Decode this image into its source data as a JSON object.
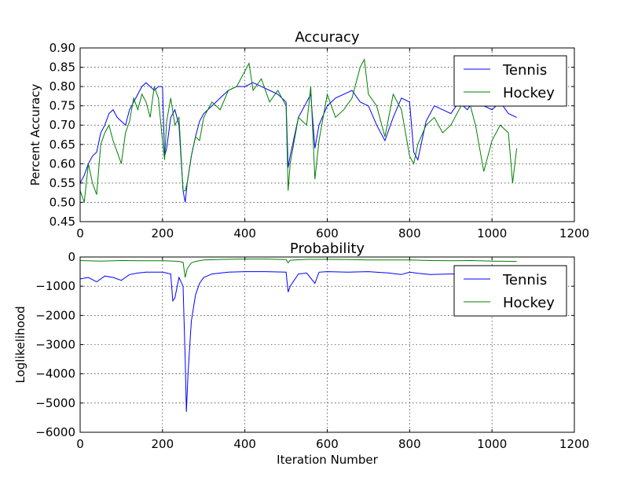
{
  "chart_data": [
    {
      "type": "line",
      "title": "Accuracy",
      "xlabel": "",
      "ylabel": "Percent Accuracy",
      "xlim": [
        0,
        1200
      ],
      "ylim": [
        0.45,
        0.9
      ],
      "xticks": [
        0,
        200,
        400,
        600,
        800,
        1000,
        1200
      ],
      "yticks": [
        0.45,
        0.5,
        0.55,
        0.6,
        0.65,
        0.7,
        0.75,
        0.8,
        0.85,
        0.9
      ],
      "xtick_labels": [
        "0",
        "200",
        "400",
        "600",
        "800",
        "1000",
        "1200"
      ],
      "ytick_labels": [
        "0.45",
        "0.50",
        "0.55",
        "0.60",
        "0.65",
        "0.70",
        "0.75",
        "0.80",
        "0.85",
        "0.90"
      ],
      "grid": true,
      "legend_position": "top-right",
      "series": [
        {
          "name": "Tennis",
          "color": "#0000ff",
          "x": [
            0,
            10,
            20,
            30,
            40,
            50,
            60,
            70,
            80,
            90,
            100,
            110,
            120,
            130,
            140,
            150,
            160,
            170,
            180,
            190,
            200,
            205,
            210,
            220,
            230,
            240,
            250,
            255,
            260,
            270,
            280,
            290,
            300,
            320,
            340,
            360,
            380,
            400,
            420,
            440,
            460,
            480,
            500,
            505,
            510,
            530,
            550,
            560,
            570,
            580,
            600,
            620,
            640,
            660,
            680,
            700,
            720,
            740,
            760,
            780,
            800,
            810,
            820,
            840,
            860,
            880,
            900,
            920,
            940,
            960,
            980,
            1000,
            1020,
            1040,
            1060
          ],
          "y": [
            0.55,
            0.57,
            0.6,
            0.62,
            0.63,
            0.68,
            0.7,
            0.73,
            0.74,
            0.72,
            0.71,
            0.7,
            0.74,
            0.76,
            0.78,
            0.8,
            0.81,
            0.8,
            0.79,
            0.8,
            0.8,
            0.62,
            0.64,
            0.72,
            0.74,
            0.7,
            0.53,
            0.5,
            0.55,
            0.62,
            0.67,
            0.71,
            0.73,
            0.75,
            0.77,
            0.79,
            0.8,
            0.8,
            0.81,
            0.8,
            0.79,
            0.78,
            0.76,
            0.59,
            0.62,
            0.72,
            0.76,
            0.78,
            0.64,
            0.7,
            0.75,
            0.77,
            0.78,
            0.79,
            0.76,
            0.75,
            0.7,
            0.66,
            0.72,
            0.77,
            0.76,
            0.63,
            0.61,
            0.71,
            0.75,
            0.74,
            0.73,
            0.76,
            0.74,
            0.77,
            0.75,
            0.74,
            0.76,
            0.73,
            0.72
          ]
        },
        {
          "name": "Hockey",
          "color": "#008000",
          "x": [
            0,
            10,
            20,
            30,
            40,
            50,
            60,
            70,
            80,
            90,
            100,
            110,
            120,
            130,
            140,
            150,
            160,
            170,
            180,
            190,
            200,
            205,
            210,
            220,
            230,
            240,
            250,
            255,
            260,
            270,
            280,
            290,
            300,
            320,
            340,
            360,
            380,
            400,
            410,
            420,
            440,
            460,
            480,
            500,
            505,
            510,
            530,
            550,
            560,
            570,
            580,
            600,
            620,
            640,
            660,
            680,
            690,
            700,
            720,
            740,
            760,
            780,
            800,
            810,
            820,
            840,
            860,
            880,
            900,
            920,
            940,
            960,
            980,
            1000,
            1020,
            1040,
            1050,
            1060
          ],
          "y": [
            0.53,
            0.5,
            0.6,
            0.55,
            0.52,
            0.65,
            0.68,
            0.7,
            0.66,
            0.63,
            0.6,
            0.68,
            0.71,
            0.77,
            0.74,
            0.78,
            0.76,
            0.72,
            0.8,
            0.77,
            0.66,
            0.61,
            0.71,
            0.77,
            0.7,
            0.72,
            0.53,
            0.53,
            0.55,
            0.62,
            0.67,
            0.66,
            0.72,
            0.76,
            0.74,
            0.79,
            0.8,
            0.84,
            0.86,
            0.79,
            0.82,
            0.76,
            0.79,
            0.75,
            0.53,
            0.6,
            0.72,
            0.7,
            0.8,
            0.56,
            0.66,
            0.78,
            0.72,
            0.74,
            0.77,
            0.85,
            0.87,
            0.78,
            0.75,
            0.67,
            0.78,
            0.74,
            0.62,
            0.6,
            0.65,
            0.7,
            0.72,
            0.68,
            0.7,
            0.74,
            0.78,
            0.7,
            0.58,
            0.66,
            0.7,
            0.68,
            0.55,
            0.64
          ]
        }
      ]
    },
    {
      "type": "line",
      "title": "Probability",
      "xlabel": "Iteration Number",
      "ylabel": "Loglikelihood",
      "xlim": [
        0,
        1200
      ],
      "ylim": [
        -6000,
        0
      ],
      "xticks": [
        0,
        200,
        400,
        600,
        800,
        1000,
        1200
      ],
      "yticks": [
        -6000,
        -5000,
        -4000,
        -3000,
        -2000,
        -1000,
        0
      ],
      "xtick_labels": [
        "0",
        "200",
        "400",
        "600",
        "800",
        "1000",
        "1200"
      ],
      "ytick_labels": [
        "−6000",
        "−5000",
        "−4000",
        "−3000",
        "−2000",
        "−1000",
        "0"
      ],
      "grid": true,
      "legend_position": "center-right",
      "series": [
        {
          "name": "Tennis",
          "color": "#0000ff",
          "x": [
            0,
            20,
            40,
            60,
            80,
            100,
            120,
            140,
            160,
            180,
            200,
            210,
            220,
            225,
            230,
            240,
            250,
            255,
            258,
            262,
            270,
            280,
            290,
            300,
            320,
            360,
            400,
            450,
            500,
            505,
            510,
            530,
            550,
            570,
            580,
            600,
            650,
            700,
            750,
            780,
            800,
            820,
            850,
            900,
            950,
            1000,
            1040,
            1060
          ],
          "y": [
            -750,
            -700,
            -850,
            -650,
            -700,
            -800,
            -600,
            -550,
            -520,
            -520,
            -520,
            -550,
            -580,
            -1500,
            -1400,
            -700,
            -1000,
            -3500,
            -5300,
            -4000,
            -2200,
            -1300,
            -900,
            -700,
            -580,
            -520,
            -500,
            -500,
            -520,
            -1200,
            -1000,
            -580,
            -550,
            -900,
            -520,
            -500,
            -520,
            -500,
            -550,
            -600,
            -520,
            -560,
            -600,
            -580,
            -580,
            -560,
            -620,
            -600
          ]
        },
        {
          "name": "Hockey",
          "color": "#008000",
          "x": [
            0,
            50,
            100,
            150,
            200,
            230,
            240,
            250,
            255,
            260,
            270,
            280,
            300,
            350,
            400,
            450,
            500,
            505,
            510,
            550,
            600,
            650,
            700,
            750,
            800,
            850,
            900,
            950,
            1000,
            1060
          ],
          "y": [
            -120,
            -140,
            -120,
            -130,
            -130,
            -140,
            -150,
            -180,
            -700,
            -400,
            -200,
            -150,
            -100,
            -80,
            -70,
            -70,
            -90,
            -200,
            -110,
            -80,
            -80,
            -90,
            -100,
            -100,
            -100,
            -120,
            -130,
            -120,
            -140,
            -150
          ]
        }
      ]
    }
  ]
}
